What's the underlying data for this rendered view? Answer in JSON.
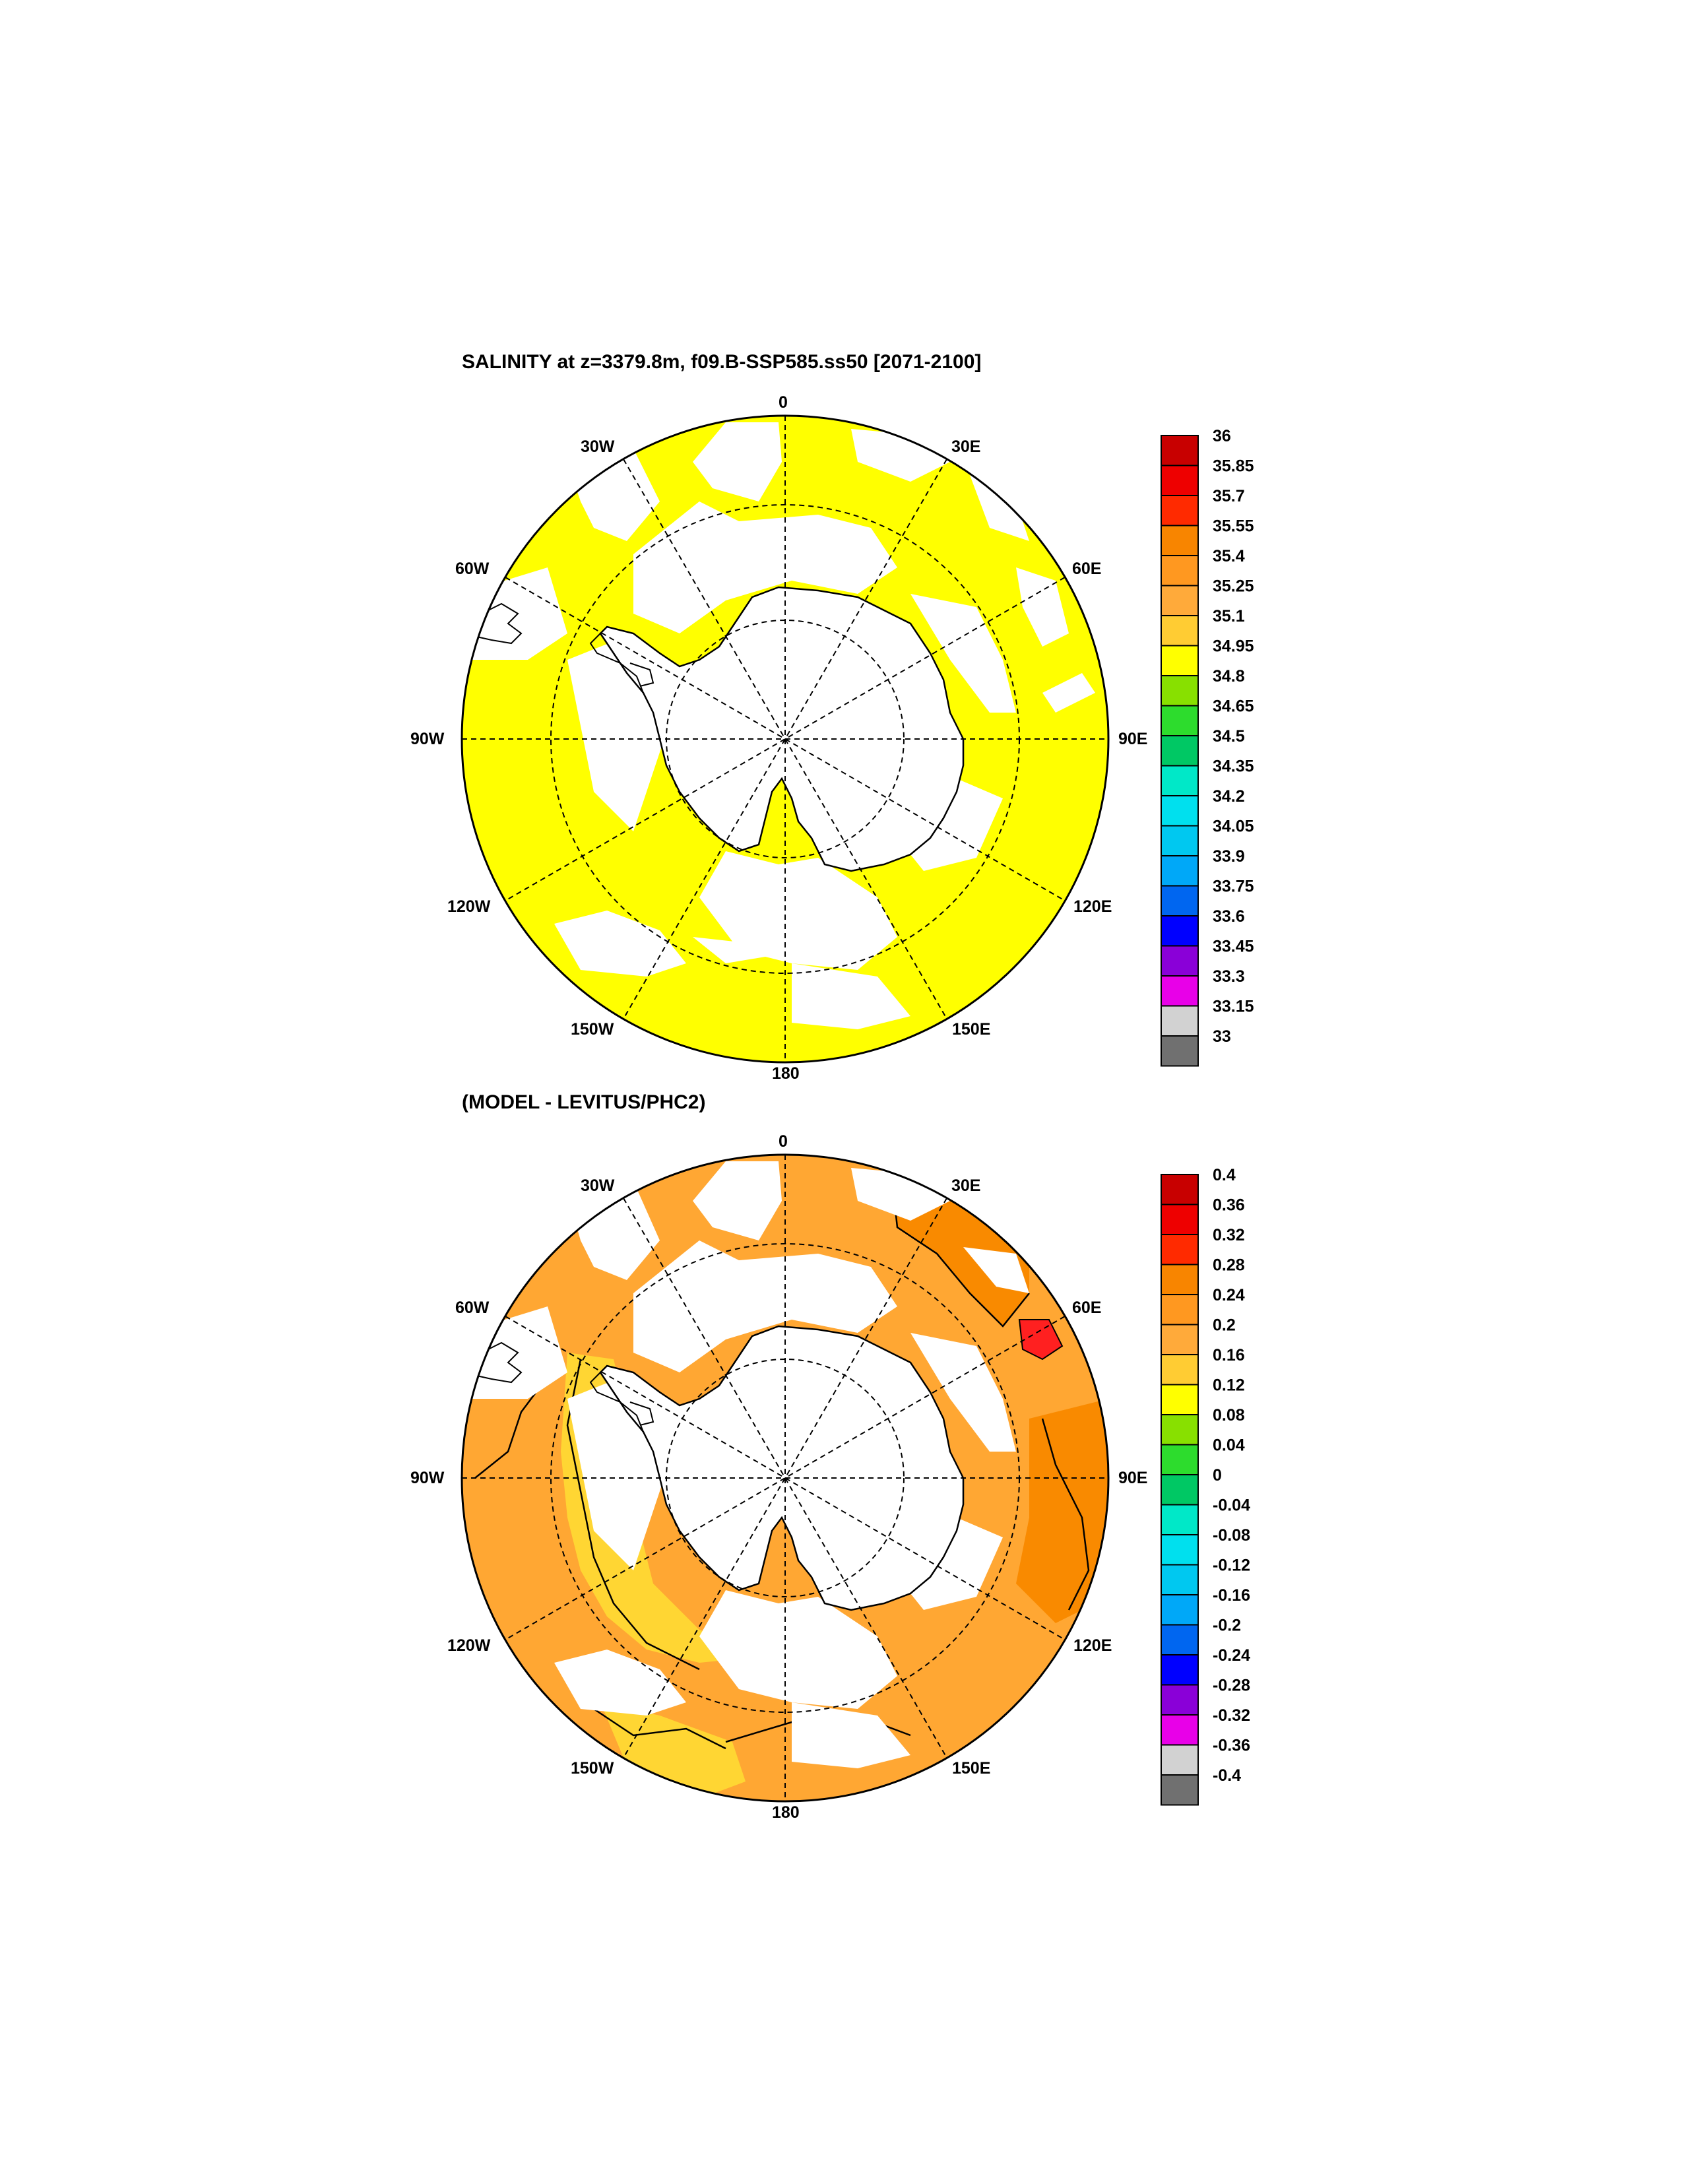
{
  "colors": {
    "yellow": "#ffff00",
    "orange_light": "#ffa733",
    "orange_mid": "#ff9922",
    "orange_dark": "#f98a00",
    "yellow_orange": "#ffd633",
    "red_cell": "#ff2020",
    "land": "#ffffff"
  },
  "panels": [
    {
      "title": "SALINITY at z=3379.8m, f09.B-SSP585.ss50 [2071-2100]",
      "lon_labels": {
        "0": "0",
        "30E": "30E",
        "60E": "60E",
        "90E": "90E",
        "120E": "120E",
        "150E": "150E",
        "180": "180",
        "150W": "150W",
        "120W": "120W",
        "90W": "90W",
        "60W": "60W",
        "30W": "30W"
      },
      "colorbar": {
        "labels": [
          "36",
          "35.85",
          "35.7",
          "35.55",
          "35.4",
          "35.25",
          "35.1",
          "34.95",
          "34.8",
          "34.65",
          "34.5",
          "34.35",
          "34.2",
          "34.05",
          "33.9",
          "33.75",
          "33.6",
          "33.45",
          "33.3",
          "33.15",
          "33"
        ],
        "colors": [
          "#c80000",
          "#ee0000",
          "#ff2a00",
          "#f88500",
          "#ff9820",
          "#ffaa3a",
          "#ffcc33",
          "#ffff00",
          "#88e000",
          "#2ddc2d",
          "#00c864",
          "#00e8c8",
          "#00e0ee",
          "#00c8f0",
          "#00a8f8",
          "#0066f0",
          "#0000ff",
          "#8a00d8",
          "#e800e8",
          "#d2d2d2",
          "#707070"
        ]
      }
    },
    {
      "title": "(MODEL - LEVITUS/PHC2)",
      "lon_labels": {
        "0": "0",
        "30E": "30E",
        "60E": "60E",
        "90E": "90E",
        "120E": "120E",
        "150E": "150E",
        "180": "180",
        "150W": "150W",
        "120W": "120W",
        "90W": "90W",
        "60W": "60W",
        "30W": "30W"
      },
      "colorbar": {
        "labels": [
          "0.4",
          "0.36",
          "0.32",
          "0.28",
          "0.24",
          "0.2",
          "0.16",
          "0.12",
          "0.08",
          "0.04",
          "0",
          "-0.04",
          "-0.08",
          "-0.12",
          "-0.16",
          "-0.2",
          "-0.24",
          "-0.28",
          "-0.32",
          "-0.36",
          "-0.4"
        ],
        "colors": [
          "#c80000",
          "#ee0000",
          "#ff2a00",
          "#f88500",
          "#ff9820",
          "#ffaa3a",
          "#ffcc33",
          "#ffff00",
          "#88e000",
          "#2ddc2d",
          "#00c864",
          "#00e8c8",
          "#00e0ee",
          "#00c8f0",
          "#00a8f8",
          "#0066f0",
          "#0000ff",
          "#8a00d8",
          "#e800e8",
          "#d2d2d2",
          "#707070"
        ]
      }
    }
  ]
}
